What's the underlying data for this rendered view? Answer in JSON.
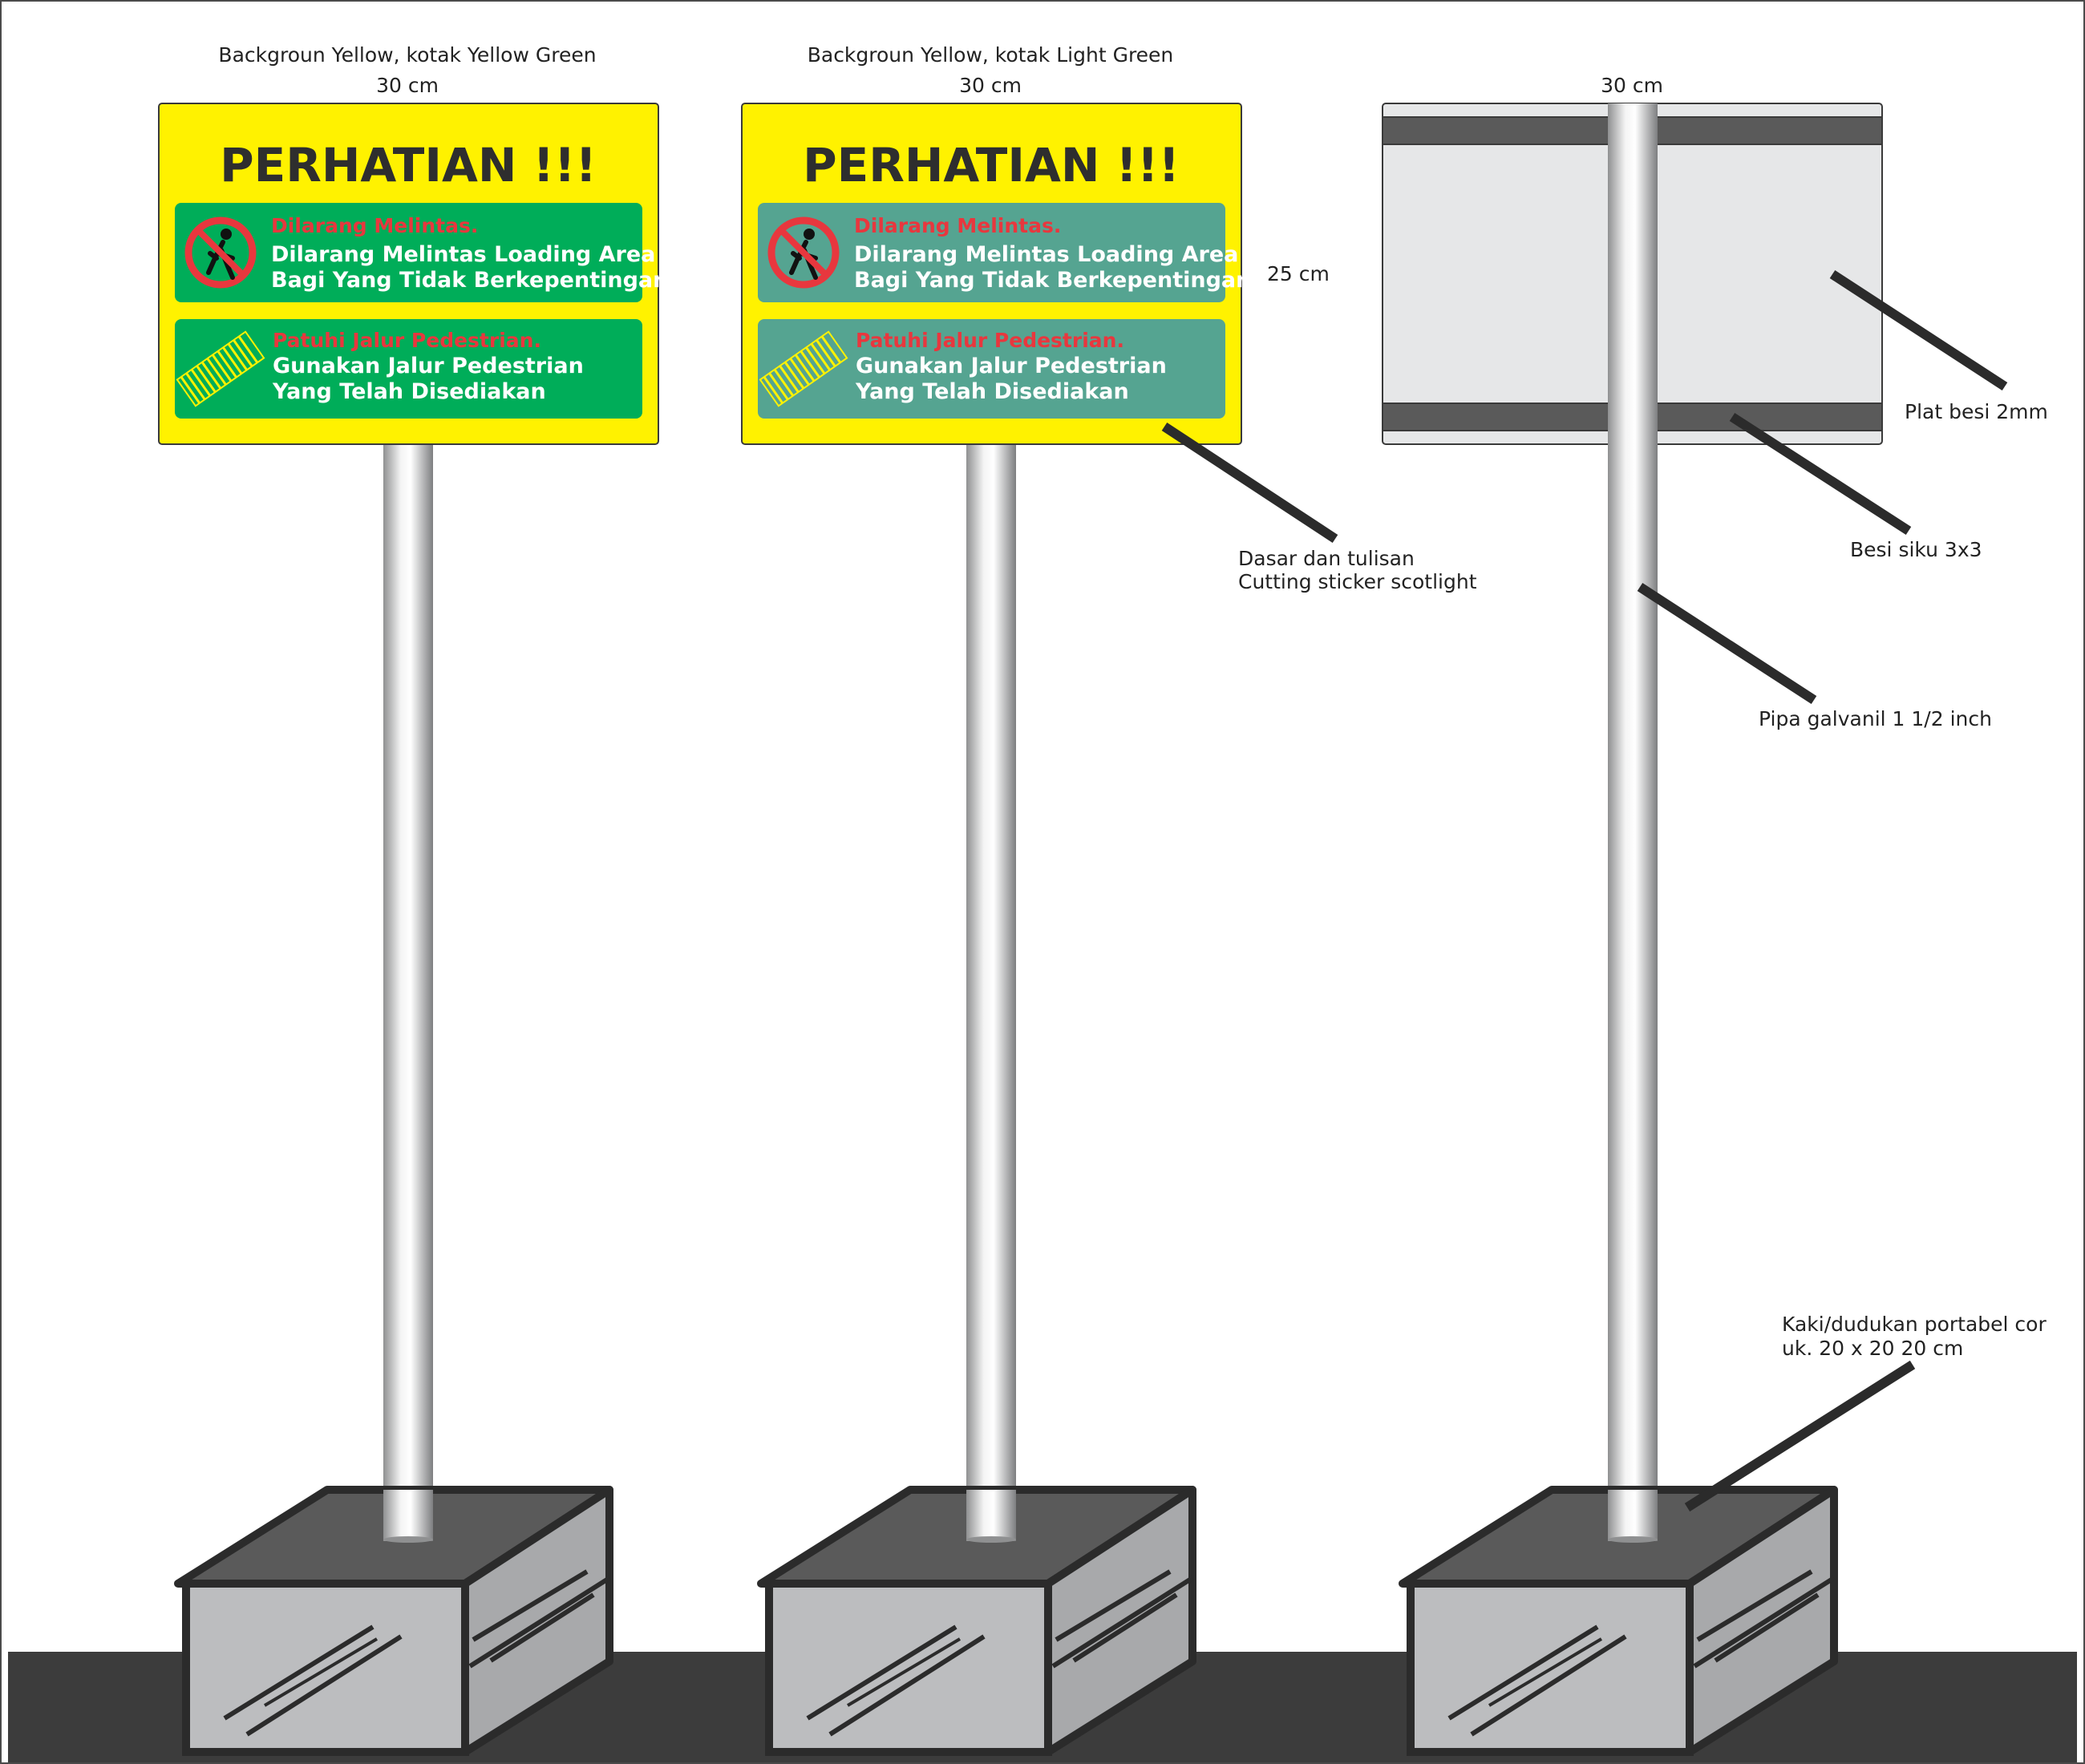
{
  "signs": [
    {
      "caption": "Backgroun Yellow, kotak Yellow Green",
      "width_label": "30 cm",
      "title": "PERHATIAN !!!",
      "box1": {
        "heading": "Dilarang Melintas.",
        "line1": "Dilarang Melintas Loading Area",
        "line2": "Bagi Yang Tidak Berkepentingan",
        "icon": "no-pedestrian-icon"
      },
      "box2": {
        "heading": "Patuhi Jalur Pedestrian.",
        "line1": "Gunakan Jalur Pedestrian",
        "line2": "Yang Telah Disediakan",
        "icon": "crosswalk-icon"
      }
    },
    {
      "caption": "Backgroun Yellow, kotak Light Green",
      "width_label": "30 cm",
      "title": "PERHATIAN !!!",
      "box1": {
        "heading": "Dilarang Melintas.",
        "line1": "Dilarang Melintas Loading Area",
        "line2": "Bagi Yang Tidak Berkepentingan",
        "icon": "no-pedestrian-icon"
      },
      "box2": {
        "heading": "Patuhi Jalur Pedestrian.",
        "line1": "Gunakan Jalur Pedestrian",
        "line2": "Yang Telah Disediakan",
        "icon": "crosswalk-icon"
      }
    },
    {
      "width_label": "30 cm"
    }
  ],
  "annotations": {
    "height": "25 cm",
    "sticker_line1": "Dasar dan tulisan",
    "sticker_line2": "Cutting sticker scotlight",
    "plate": "Plat besi 2mm",
    "angle_iron": "Besi siku 3x3",
    "pipe": "Pipa galvanil 1 1/2 inch",
    "base_line1": "Kaki/dudukan portabel cor",
    "base_line2": "uk. 20 x 20 20 cm"
  },
  "colors": {
    "sign_background": "#FFF200",
    "box_yellow_green": "#00AD59",
    "box_light_green": "#55A491",
    "warning_red": "#E8373E",
    "crosswalk": "#FFF200",
    "back_plate": "#E6E7E8",
    "angle_iron": "#5A5A5A",
    "ground": "#3C3C3C",
    "base_side": "#B8B9BB",
    "base_top": "#5A5A5A"
  }
}
